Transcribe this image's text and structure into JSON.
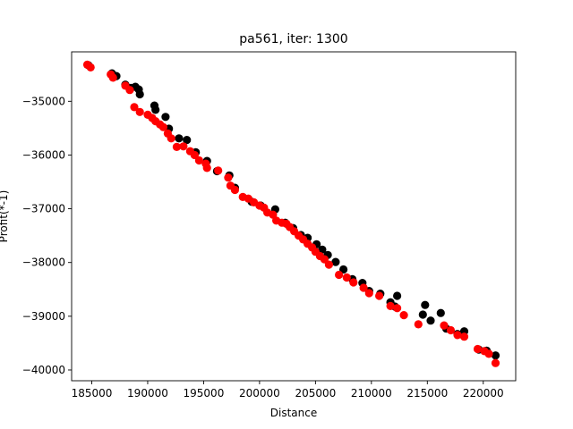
{
  "chart_data": {
    "type": "scatter",
    "title": "pa561, iter: 1300",
    "xlabel": "Distance",
    "ylabel": "Profit(*-1)",
    "xlim": [
      183200,
      222900
    ],
    "ylim": [
      -40200,
      -34080
    ],
    "grid": false,
    "x_ticks": [
      {
        "value": 185000,
        "label": "185000"
      },
      {
        "value": 190000,
        "label": "190000"
      },
      {
        "value": 195000,
        "label": "195000"
      },
      {
        "value": 200000,
        "label": "200000"
      },
      {
        "value": 205000,
        "label": "205000"
      },
      {
        "value": 210000,
        "label": "210000"
      },
      {
        "value": 215000,
        "label": "215000"
      },
      {
        "value": 220000,
        "label": "220000"
      }
    ],
    "y_ticks": [
      {
        "value": -35000,
        "label": "−35000"
      },
      {
        "value": -36000,
        "label": "−36000"
      },
      {
        "value": -37000,
        "label": "−37000"
      },
      {
        "value": -38000,
        "label": "−38000"
      },
      {
        "value": -39000,
        "label": "−39000"
      },
      {
        "value": -40000,
        "label": "−40000"
      }
    ],
    "series": [
      {
        "color": "#000000",
        "points": [
          [
            184700,
            -34330
          ],
          [
            186800,
            -34480
          ],
          [
            187200,
            -34530
          ],
          [
            188000,
            -34690
          ],
          [
            188500,
            -34750
          ],
          [
            188900,
            -34730
          ],
          [
            189200,
            -34780
          ],
          [
            189300,
            -34870
          ],
          [
            190600,
            -35080
          ],
          [
            190700,
            -35160
          ],
          [
            191600,
            -35290
          ],
          [
            191900,
            -35510
          ],
          [
            192800,
            -35690
          ],
          [
            193500,
            -35720
          ],
          [
            194300,
            -35950
          ],
          [
            195300,
            -36110
          ],
          [
            196200,
            -36300
          ],
          [
            197300,
            -36380
          ],
          [
            197800,
            -36610
          ],
          [
            199300,
            -36870
          ],
          [
            200100,
            -36940
          ],
          [
            201400,
            -37010
          ],
          [
            202300,
            -37260
          ],
          [
            203000,
            -37360
          ],
          [
            203700,
            -37490
          ],
          [
            204300,
            -37540
          ],
          [
            205100,
            -37660
          ],
          [
            205600,
            -37760
          ],
          [
            206100,
            -37860
          ],
          [
            206800,
            -37990
          ],
          [
            207500,
            -38130
          ],
          [
            208300,
            -38310
          ],
          [
            209200,
            -38380
          ],
          [
            209800,
            -38530
          ],
          [
            210800,
            -38580
          ],
          [
            211700,
            -38740
          ],
          [
            212100,
            -38820
          ],
          [
            212300,
            -38620
          ],
          [
            214600,
            -38970
          ],
          [
            214800,
            -38790
          ],
          [
            215300,
            -39080
          ],
          [
            216200,
            -38940
          ],
          [
            216700,
            -39230
          ],
          [
            217700,
            -39330
          ],
          [
            218300,
            -39280
          ],
          [
            219600,
            -39620
          ],
          [
            220300,
            -39640
          ],
          [
            221100,
            -39730
          ]
        ]
      },
      {
        "color": "#ff0000",
        "points": [
          [
            184600,
            -34320
          ],
          [
            184900,
            -34370
          ],
          [
            186700,
            -34500
          ],
          [
            186900,
            -34560
          ],
          [
            188000,
            -34710
          ],
          [
            188400,
            -34790
          ],
          [
            188800,
            -35110
          ],
          [
            189300,
            -35200
          ],
          [
            190000,
            -35250
          ],
          [
            190400,
            -35310
          ],
          [
            190700,
            -35370
          ],
          [
            191100,
            -35430
          ],
          [
            191400,
            -35480
          ],
          [
            191800,
            -35600
          ],
          [
            192100,
            -35690
          ],
          [
            192600,
            -35850
          ],
          [
            193200,
            -35840
          ],
          [
            193800,
            -35930
          ],
          [
            194200,
            -36000
          ],
          [
            194600,
            -36100
          ],
          [
            195200,
            -36160
          ],
          [
            195300,
            -36240
          ],
          [
            196300,
            -36290
          ],
          [
            197200,
            -36420
          ],
          [
            197400,
            -36570
          ],
          [
            197800,
            -36650
          ],
          [
            198500,
            -36780
          ],
          [
            199000,
            -36810
          ],
          [
            199500,
            -36880
          ],
          [
            200000,
            -36940
          ],
          [
            200400,
            -36980
          ],
          [
            200700,
            -37070
          ],
          [
            201200,
            -37110
          ],
          [
            201500,
            -37220
          ],
          [
            202000,
            -37260
          ],
          [
            202400,
            -37280
          ],
          [
            202700,
            -37340
          ],
          [
            203100,
            -37420
          ],
          [
            203500,
            -37500
          ],
          [
            203900,
            -37570
          ],
          [
            204300,
            -37650
          ],
          [
            204700,
            -37720
          ],
          [
            205000,
            -37800
          ],
          [
            205400,
            -37880
          ],
          [
            205800,
            -37940
          ],
          [
            206200,
            -38040
          ],
          [
            207100,
            -38230
          ],
          [
            207800,
            -38280
          ],
          [
            208400,
            -38370
          ],
          [
            209300,
            -38470
          ],
          [
            209800,
            -38570
          ],
          [
            210700,
            -38620
          ],
          [
            211700,
            -38810
          ],
          [
            212300,
            -38850
          ],
          [
            212900,
            -38980
          ],
          [
            214200,
            -39150
          ],
          [
            216500,
            -39170
          ],
          [
            217100,
            -39260
          ],
          [
            217700,
            -39350
          ],
          [
            218300,
            -39380
          ],
          [
            219500,
            -39610
          ],
          [
            220100,
            -39650
          ],
          [
            220500,
            -39700
          ],
          [
            221100,
            -39870
          ]
        ]
      }
    ]
  }
}
